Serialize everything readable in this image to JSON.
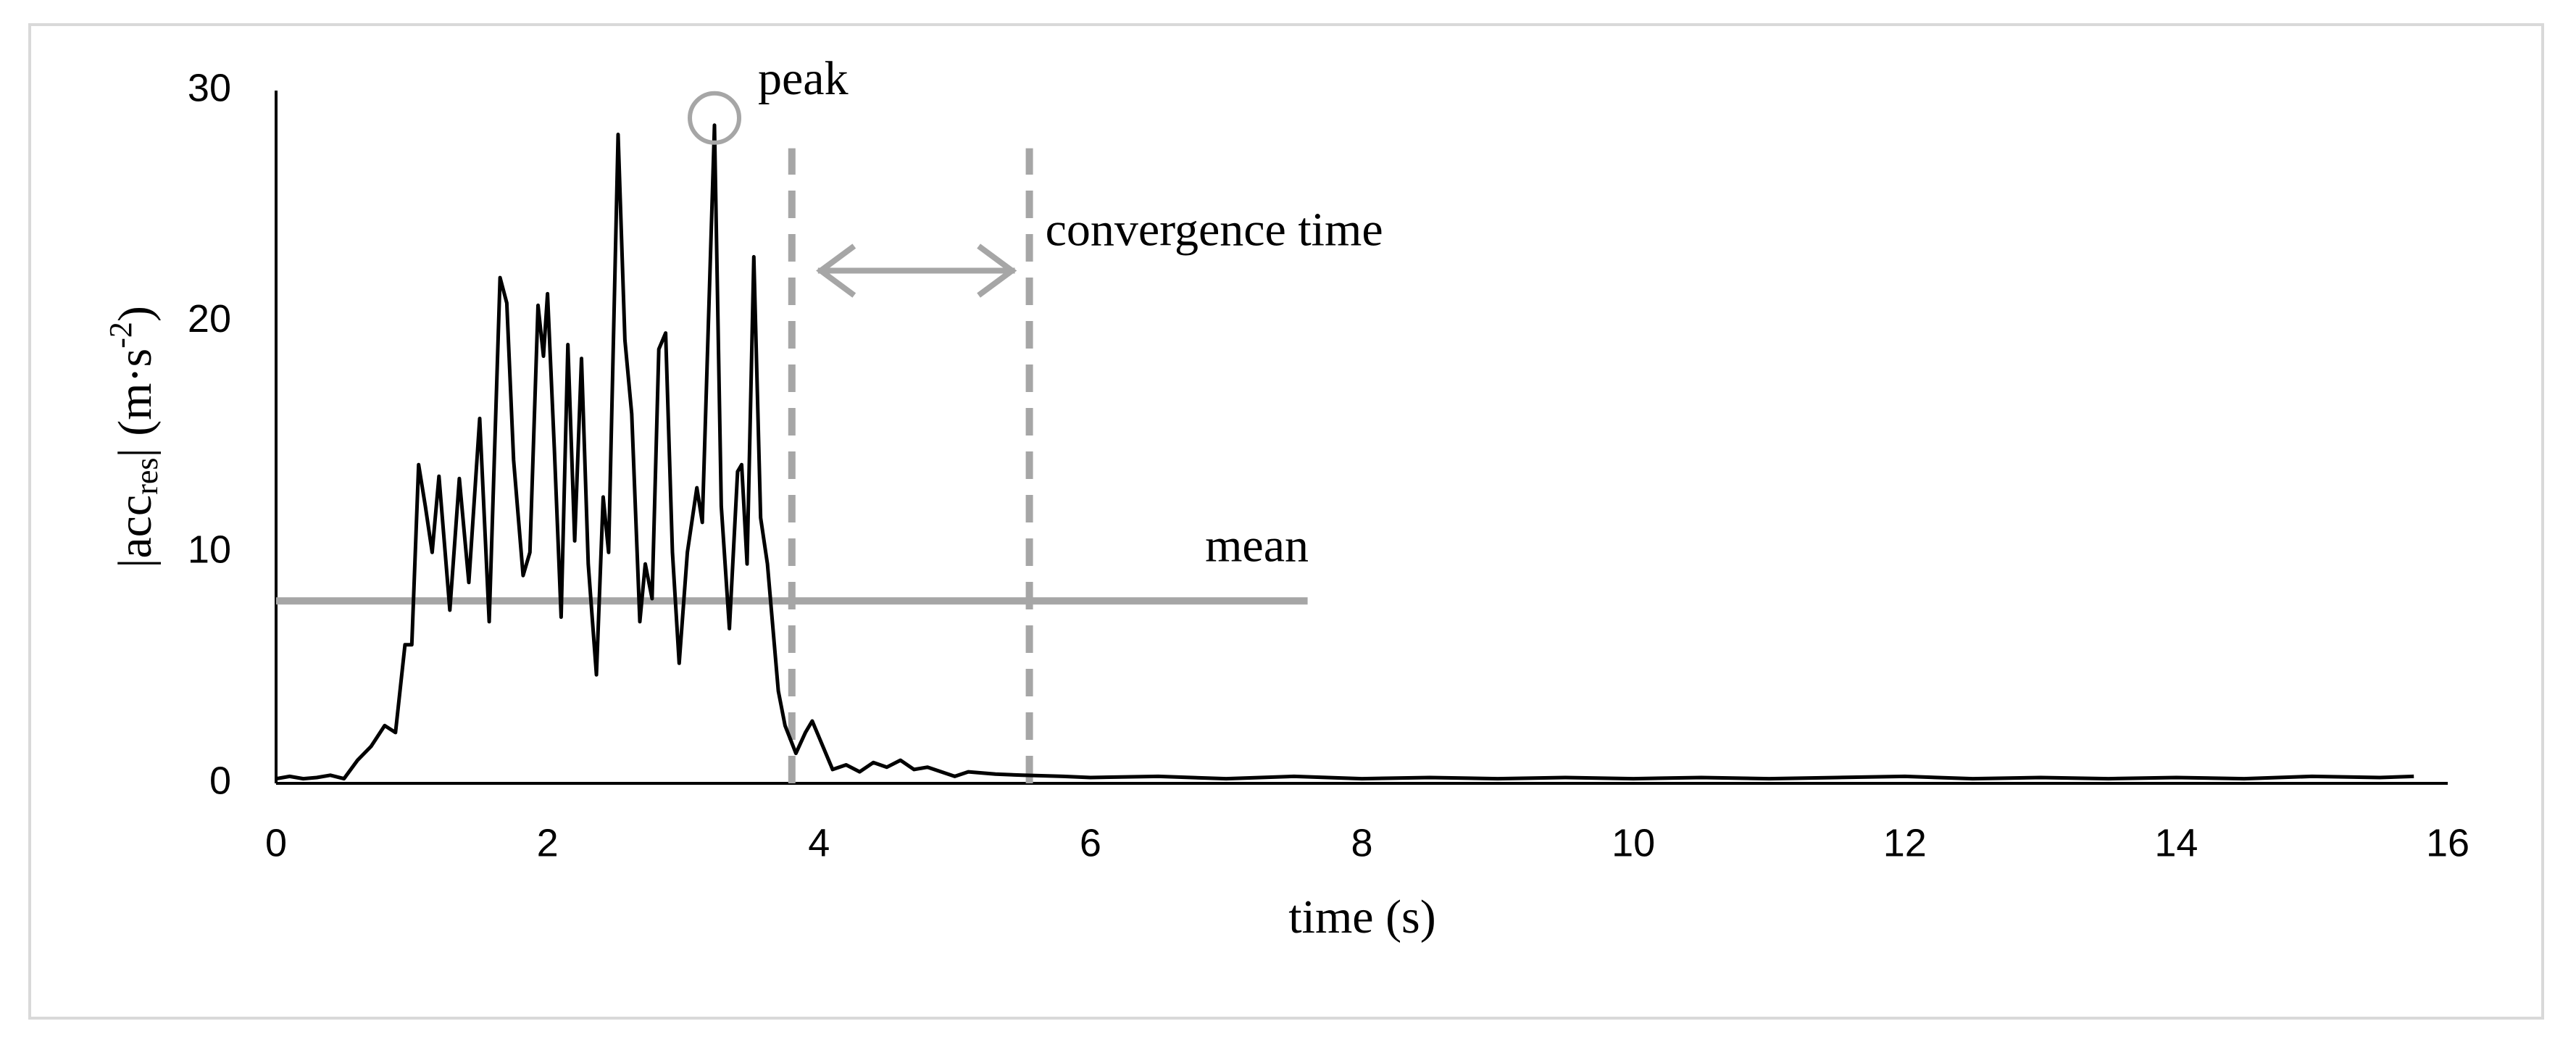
{
  "chart_data": {
    "type": "line",
    "xlabel": "time (s)",
    "ylabel": [
      "|acc",
      "res",
      "| (m·s",
      "-2",
      ")"
    ],
    "xlim": [
      0,
      16
    ],
    "ylim": [
      0,
      30
    ],
    "xticks": [
      0,
      2,
      4,
      6,
      8,
      10,
      12,
      14,
      16
    ],
    "yticks": [
      0,
      10,
      20,
      30
    ],
    "grid": false,
    "color": "#000000",
    "annotation_color": "#a6a6a6",
    "x": [
      0,
      0.1,
      0.2,
      0.3,
      0.4,
      0.5,
      0.6,
      0.7,
      0.8,
      0.88,
      0.95,
      1.0,
      1.05,
      1.1,
      1.15,
      1.2,
      1.28,
      1.35,
      1.42,
      1.5,
      1.57,
      1.65,
      1.7,
      1.75,
      1.82,
      1.87,
      1.93,
      1.97,
      2.0,
      2.05,
      2.1,
      2.15,
      2.2,
      2.25,
      2.3,
      2.36,
      2.41,
      2.45,
      2.52,
      2.57,
      2.62,
      2.68,
      2.72,
      2.77,
      2.82,
      2.87,
      2.92,
      2.97,
      3.03,
      3.1,
      3.14,
      3.23,
      3.28,
      3.34,
      3.4,
      3.43,
      3.47,
      3.52,
      3.57,
      3.62,
      3.7,
      3.75,
      3.83,
      3.9,
      3.95,
      4.0,
      4.1,
      4.2,
      4.3,
      4.4,
      4.5,
      4.6,
      4.7,
      4.8,
      5.0,
      5.1,
      5.3,
      5.5,
      5.8,
      6.0,
      6.5,
      7.0,
      7.5,
      8.0,
      8.5,
      9.0,
      9.5,
      10.0,
      10.5,
      11.0,
      11.5,
      12.0,
      12.5,
      13.0,
      13.5,
      14.0,
      14.5,
      15.0,
      15.5,
      15.75
    ],
    "values": [
      0.2,
      0.3,
      0.2,
      0.25,
      0.35,
      0.2,
      1.0,
      1.6,
      2.5,
      2.2,
      6.0,
      6.0,
      13.8,
      12.0,
      10.0,
      13.3,
      7.5,
      13.2,
      8.7,
      15.8,
      7.0,
      21.9,
      20.8,
      14.0,
      9.0,
      10.0,
      20.7,
      18.5,
      21.2,
      14.5,
      7.2,
      19.0,
      10.5,
      18.4,
      9.5,
      4.7,
      12.4,
      10.0,
      28.1,
      19.2,
      16.0,
      7.0,
      9.5,
      8.0,
      18.8,
      19.5,
      10.0,
      5.2,
      10.0,
      12.8,
      11.3,
      28.5,
      12.0,
      6.7,
      13.5,
      13.8,
      9.5,
      22.8,
      11.5,
      9.5,
      4.0,
      2.5,
      1.3,
      2.2,
      2.7,
      2.0,
      0.6,
      0.8,
      0.5,
      0.9,
      0.7,
      1.0,
      0.6,
      0.7,
      0.3,
      0.5,
      0.4,
      0.35,
      0.3,
      0.25,
      0.3,
      0.2,
      0.3,
      0.2,
      0.25,
      0.2,
      0.25,
      0.2,
      0.25,
      0.2,
      0.25,
      0.3,
      0.2,
      0.25,
      0.2,
      0.25,
      0.2,
      0.3,
      0.25,
      0.3
    ],
    "peak": {
      "text": "peak",
      "x": 3.23,
      "y": 28.5
    },
    "mean": {
      "text": "mean",
      "value": 7.9,
      "x_end": 7.6
    },
    "convergence": {
      "text": "convergence time",
      "start": 3.8,
      "end": 5.55,
      "top": 27.5,
      "arrow_y": 22.2
    }
  }
}
